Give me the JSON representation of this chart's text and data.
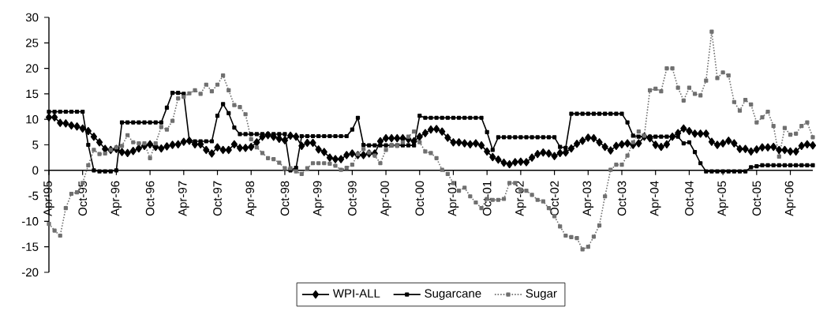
{
  "chart_data": {
    "type": "line",
    "x": [
      "1995-04",
      "1995-05",
      "1995-06",
      "1995-07",
      "1995-08",
      "1995-09",
      "1995-10",
      "1995-11",
      "1995-12",
      "1996-01",
      "1996-02",
      "1996-03",
      "1996-04",
      "1996-05",
      "1996-06",
      "1996-07",
      "1996-08",
      "1996-09",
      "1996-10",
      "1996-11",
      "1996-12",
      "1997-01",
      "1997-02",
      "1997-03",
      "1997-04",
      "1997-05",
      "1997-06",
      "1997-07",
      "1997-08",
      "1997-09",
      "1997-10",
      "1997-11",
      "1997-12",
      "1998-01",
      "1998-02",
      "1998-03",
      "1998-04",
      "1998-05",
      "1998-06",
      "1998-07",
      "1998-08",
      "1998-09",
      "1998-10",
      "1998-11",
      "1998-12",
      "1999-01",
      "1999-02",
      "1999-03",
      "1999-04",
      "1999-05",
      "1999-06",
      "1999-07",
      "1999-08",
      "1999-09",
      "1999-10",
      "1999-11",
      "1999-12",
      "2000-01",
      "2000-02",
      "2000-03",
      "2000-04",
      "2000-05",
      "2000-06",
      "2000-07",
      "2000-08",
      "2000-09",
      "2000-10",
      "2000-11",
      "2000-12",
      "2001-01",
      "2001-02",
      "2001-03",
      "2001-04",
      "2001-05",
      "2001-06",
      "2001-07",
      "2001-08",
      "2001-09",
      "2001-10",
      "2001-11",
      "2001-12",
      "2002-01",
      "2002-02",
      "2002-03",
      "2002-04",
      "2002-05",
      "2002-06",
      "2002-07",
      "2002-08",
      "2002-09",
      "2002-10",
      "2002-11",
      "2002-12",
      "2003-01",
      "2003-02",
      "2003-03",
      "2003-04",
      "2003-05",
      "2003-06",
      "2003-07",
      "2003-08",
      "2003-09",
      "2003-10",
      "2003-11",
      "2003-12",
      "2004-01",
      "2004-02",
      "2004-03",
      "2004-04",
      "2004-05",
      "2004-06",
      "2004-07",
      "2004-08",
      "2004-09",
      "2004-10",
      "2004-11",
      "2004-12",
      "2005-01",
      "2005-02",
      "2005-03",
      "2005-04",
      "2005-05",
      "2005-06",
      "2005-07",
      "2005-08",
      "2005-09",
      "2005-10",
      "2005-11",
      "2005-12",
      "2006-01",
      "2006-02",
      "2006-03",
      "2006-04",
      "2006-05",
      "2006-06",
      "2006-07",
      "2006-08"
    ],
    "series": [
      {
        "name": "WPI-ALL",
        "color": "#000000",
        "marker": "diamond",
        "line_style": "solid",
        "values": [
          10.4,
          10.4,
          9.3,
          9.2,
          8.8,
          8.6,
          8.2,
          7.7,
          6.6,
          5.5,
          4.2,
          4.0,
          4.2,
          3.6,
          3.4,
          3.8,
          4.3,
          4.8,
          5.1,
          4.6,
          4.3,
          4.7,
          5.0,
          5.1,
          5.6,
          5.8,
          5.1,
          5.1,
          4.0,
          3.3,
          4.5,
          4.0,
          4.0,
          5.1,
          4.4,
          4.4,
          4.6,
          5.5,
          6.6,
          6.9,
          6.6,
          6.2,
          5.9,
          6.8,
          6.6,
          4.8,
          5.4,
          5.4,
          4.1,
          3.6,
          2.5,
          2.2,
          2.2,
          3.0,
          3.3,
          3.0,
          3.0,
          3.3,
          3.3,
          5.7,
          6.3,
          6.3,
          6.3,
          6.3,
          6.1,
          5.7,
          6.6,
          7.3,
          8.0,
          8.1,
          7.6,
          6.4,
          5.5,
          5.5,
          5.3,
          5.1,
          5.3,
          4.9,
          3.7,
          2.6,
          2.1,
          1.5,
          1.2,
          1.6,
          1.7,
          1.6,
          2.5,
          3.2,
          3.5,
          3.3,
          2.8,
          3.4,
          3.5,
          4.3,
          5.2,
          5.8,
          6.4,
          6.3,
          5.5,
          4.6,
          3.9,
          4.8,
          5.1,
          5.3,
          5.0,
          5.3,
          6.6,
          6.3,
          5.0,
          4.6,
          5.1,
          6.6,
          7.3,
          8.2,
          7.7,
          7.2,
          7.2,
          7.2,
          5.6,
          5.0,
          5.3,
          5.8,
          5.3,
          4.2,
          4.2,
          3.7,
          4.1,
          4.5,
          4.5,
          4.6,
          4.0,
          4.0,
          3.7,
          3.7,
          4.8,
          5.1,
          4.9
        ]
      },
      {
        "name": "Sugarcane",
        "color": "#000000",
        "marker": "square",
        "line_style": "solid",
        "values": [
          11.5,
          11.5,
          11.5,
          11.5,
          11.5,
          11.5,
          11.5,
          5.0,
          0.0,
          -0.2,
          -0.2,
          -0.2,
          0.0,
          9.4,
          9.4,
          9.4,
          9.4,
          9.4,
          9.4,
          9.4,
          9.4,
          12.3,
          15.2,
          15.2,
          15.0,
          5.8,
          5.7,
          5.7,
          5.7,
          5.7,
          10.7,
          13.0,
          11.2,
          8.4,
          7.1,
          7.1,
          7.1,
          7.1,
          7.1,
          7.1,
          7.1,
          7.1,
          7.1,
          0.0,
          0.5,
          6.7,
          6.7,
          6.7,
          6.7,
          6.7,
          6.7,
          6.7,
          6.7,
          6.7,
          8.0,
          10.3,
          5.0,
          4.9,
          4.9,
          4.9,
          4.9,
          4.9,
          4.9,
          4.9,
          4.9,
          4.9,
          10.7,
          10.3,
          10.3,
          10.3,
          10.3,
          10.3,
          10.3,
          10.3,
          10.3,
          10.3,
          10.3,
          10.3,
          7.5,
          4.0,
          6.5,
          6.5,
          6.5,
          6.5,
          6.5,
          6.5,
          6.5,
          6.5,
          6.5,
          6.5,
          6.5,
          4.6,
          4.4,
          11.1,
          11.1,
          11.1,
          11.1,
          11.1,
          11.1,
          11.1,
          11.1,
          11.1,
          11.1,
          9.4,
          6.8,
          6.6,
          6.6,
          6.6,
          6.6,
          6.6,
          6.6,
          6.6,
          6.6,
          5.3,
          5.5,
          3.6,
          1.4,
          -0.2,
          -0.2,
          -0.2,
          -0.2,
          -0.2,
          -0.2,
          -0.2,
          -0.2,
          0.6,
          0.8,
          1.0,
          1.0,
          1.0,
          1.0,
          1.0,
          1.0,
          1.0,
          1.0,
          1.0,
          1.0
        ]
      },
      {
        "name": "Sugar",
        "color": "#707070",
        "marker": "square",
        "line_style": "dotted",
        "values": [
          -10.5,
          -11.8,
          -12.8,
          -7.4,
          -4.6,
          -4.3,
          -2.5,
          1.0,
          4.0,
          3.2,
          3.3,
          4.0,
          4.5,
          4.8,
          6.9,
          5.5,
          5.3,
          5.3,
          2.4,
          5.3,
          8.5,
          8.0,
          9.7,
          14.1,
          14.4,
          15.1,
          15.7,
          15.0,
          16.8,
          15.5,
          16.8,
          18.6,
          15.7,
          12.8,
          12.4,
          11.0,
          6.1,
          4.5,
          3.4,
          2.4,
          2.2,
          1.5,
          0.4,
          0.4,
          -0.2,
          -0.7,
          0.4,
          1.4,
          1.4,
          1.4,
          1.3,
          0.9,
          0.1,
          0.5,
          1.1,
          3.2,
          4.2,
          3.5,
          2.9,
          1.4,
          4.0,
          4.9,
          4.8,
          5.5,
          6.6,
          7.6,
          5.5,
          3.7,
          3.4,
          2.4,
          0.1,
          -0.7,
          -2.5,
          -4.0,
          -3.4,
          -5.1,
          -6.3,
          -7.4,
          -5.6,
          -5.8,
          -5.8,
          -5.6,
          -2.5,
          -2.5,
          -3.8,
          -4.0,
          -4.8,
          -5.8,
          -6.1,
          -7.4,
          -9.0,
          -11.0,
          -12.8,
          -13.1,
          -13.3,
          -15.5,
          -15.0,
          -13.0,
          -10.8,
          -5.1,
          0.1,
          1.1,
          1.1,
          2.9,
          5.5,
          7.6,
          6.8,
          15.7,
          16.0,
          15.5,
          20.0,
          20.0,
          16.2,
          13.7,
          16.2,
          15.0,
          14.7,
          17.6,
          27.2,
          18.1,
          19.2,
          18.6,
          13.4,
          11.7,
          13.8,
          12.9,
          9.4,
          10.4,
          11.5,
          8.7,
          2.7,
          8.3,
          7.0,
          7.2,
          8.7,
          9.4,
          6.5
        ]
      }
    ],
    "xlim": [
      "1995-04",
      "2006-08"
    ],
    "xticks": [
      {
        "value": "1995-04",
        "label": "Apr-95"
      },
      {
        "value": "1995-10",
        "label": "Oct-95"
      },
      {
        "value": "1996-04",
        "label": "Apr-96"
      },
      {
        "value": "1996-10",
        "label": "Oct-96"
      },
      {
        "value": "1997-04",
        "label": "Apr-97"
      },
      {
        "value": "1997-10",
        "label": "Oct-97"
      },
      {
        "value": "1998-04",
        "label": "Apr-98"
      },
      {
        "value": "1998-10",
        "label": "Oct-98"
      },
      {
        "value": "1999-04",
        "label": "Apr-99"
      },
      {
        "value": "1999-10",
        "label": "Oct-99"
      },
      {
        "value": "2000-04",
        "label": "Apr-00"
      },
      {
        "value": "2000-10",
        "label": "Oct-00"
      },
      {
        "value": "2001-04",
        "label": "Apr-01"
      },
      {
        "value": "2001-10",
        "label": "Oct-01"
      },
      {
        "value": "2002-04",
        "label": "Apr-02"
      },
      {
        "value": "2002-10",
        "label": "Oct-02"
      },
      {
        "value": "2003-04",
        "label": "Apr-03"
      },
      {
        "value": "2003-10",
        "label": "Oct-03"
      },
      {
        "value": "2004-04",
        "label": "Apr-04"
      },
      {
        "value": "2004-10",
        "label": "Oct-04"
      },
      {
        "value": "2005-04",
        "label": "Apr-05"
      },
      {
        "value": "2005-10",
        "label": "Oct-05"
      },
      {
        "value": "2006-04",
        "label": "Apr-06"
      }
    ],
    "ylim": [
      -20,
      30
    ],
    "yticks": [
      -20,
      -15,
      -10,
      -5,
      0,
      5,
      10,
      15,
      20,
      25,
      30
    ],
    "grid": false,
    "legend": "bottom"
  }
}
